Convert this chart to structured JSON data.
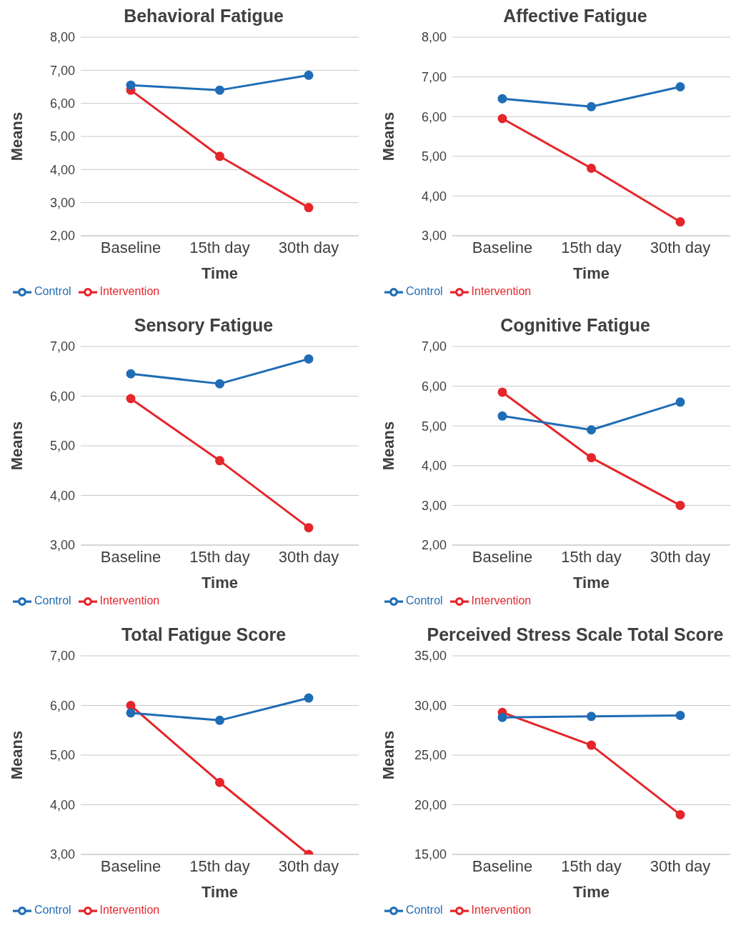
{
  "chart_data": [
    {
      "type": "line",
      "title": "Behavioral Fatigue",
      "xlabel": "Time",
      "ylabel": "Means",
      "categories": [
        "Baseline",
        "15th day",
        "30th day"
      ],
      "series": [
        {
          "name": "Intervention",
          "color": "#e5262b",
          "values": [
            6.4,
            4.4,
            2.85
          ]
        },
        {
          "name": "Control",
          "color": "#1f6db5",
          "values": [
            6.55,
            6.4,
            6.85
          ]
        }
      ],
      "ylim": [
        2,
        8
      ],
      "yticks": [
        {
          "value": 2,
          "label": "2,00"
        },
        {
          "value": 3,
          "label": "3,00"
        },
        {
          "value": 4,
          "label": "4,00"
        },
        {
          "value": 5,
          "label": "5,00"
        },
        {
          "value": 6,
          "label": "6,00"
        },
        {
          "value": 7,
          "label": "7,00"
        },
        {
          "value": 8,
          "label": "8,00"
        }
      ],
      "grid": "y",
      "legend": "bottom left",
      "marker": "circle",
      "line_style": "solid"
    },
    {
      "type": "line",
      "title": "Affective Fatigue",
      "xlabel": "Time",
      "ylabel": "Means",
      "categories": [
        "Baseline",
        "15th day",
        "30th day"
      ],
      "series": [
        {
          "name": "Intervention",
          "color": "#e5262b",
          "values": [
            5.95,
            4.7,
            3.35
          ]
        },
        {
          "name": "Control",
          "color": "#1f6db5",
          "values": [
            6.45,
            6.25,
            6.75
          ]
        }
      ],
      "ylim": [
        3,
        8
      ],
      "yticks": [
        {
          "value": 3,
          "label": "3,00"
        },
        {
          "value": 4,
          "label": "4,00"
        },
        {
          "value": 5,
          "label": "5,00"
        },
        {
          "value": 6,
          "label": "6,00"
        },
        {
          "value": 7,
          "label": "7,00"
        },
        {
          "value": 8,
          "label": "8,00"
        }
      ],
      "grid": "y",
      "legend": "bottom left",
      "marker": "circle",
      "line_style": "solid"
    },
    {
      "type": "line",
      "title": "Sensory Fatigue",
      "xlabel": "Time",
      "ylabel": "Means",
      "categories": [
        "Baseline",
        "15th day",
        "30th day"
      ],
      "series": [
        {
          "name": "Intervention",
          "color": "#e5262b",
          "values": [
            5.95,
            4.7,
            3.35
          ]
        },
        {
          "name": "Control",
          "color": "#1f6db5",
          "values": [
            6.45,
            6.25,
            6.75
          ]
        }
      ],
      "ylim": [
        3,
        7
      ],
      "yticks": [
        {
          "value": 3,
          "label": "3,00"
        },
        {
          "value": 4,
          "label": "4,00"
        },
        {
          "value": 5,
          "label": "5,00"
        },
        {
          "value": 6,
          "label": "6,00"
        },
        {
          "value": 7,
          "label": "7,00"
        }
      ],
      "grid": "y",
      "legend": "bottom left",
      "marker": "circle",
      "line_style": "solid"
    },
    {
      "type": "line",
      "title": "Cognitive Fatigue",
      "xlabel": "Time",
      "ylabel": "Means",
      "categories": [
        "Baseline",
        "15th day",
        "30th day"
      ],
      "series": [
        {
          "name": "Intervention",
          "color": "#e5262b",
          "values": [
            5.85,
            4.2,
            3
          ]
        },
        {
          "name": "Control",
          "color": "#1f6db5",
          "values": [
            5.25,
            4.9,
            5.6
          ]
        }
      ],
      "ylim": [
        2,
        7
      ],
      "yticks": [
        {
          "value": 2,
          "label": "2,00"
        },
        {
          "value": 3,
          "label": "3,00"
        },
        {
          "value": 4,
          "label": "4,00"
        },
        {
          "value": 5,
          "label": "5,00"
        },
        {
          "value": 6,
          "label": "6,00"
        },
        {
          "value": 7,
          "label": "7,00"
        }
      ],
      "grid": "y",
      "legend": "bottom left",
      "marker": "circle",
      "line_style": "solid"
    },
    {
      "type": "line",
      "title": "Total Fatigue Score",
      "xlabel": "Time",
      "ylabel": "Means",
      "categories": [
        "Baseline",
        "15th day",
        "30th day"
      ],
      "series": [
        {
          "name": "Intervention",
          "color": "#e5262b",
          "values": [
            6,
            4.45,
            3
          ]
        },
        {
          "name": "Control",
          "color": "#1f6db5",
          "values": [
            5.85,
            5.7,
            6.15
          ]
        }
      ],
      "ylim": [
        3,
        7
      ],
      "yticks": [
        {
          "value": 3,
          "label": "3,00"
        },
        {
          "value": 4,
          "label": "4,00"
        },
        {
          "value": 5,
          "label": "5,00"
        },
        {
          "value": 6,
          "label": "6,00"
        },
        {
          "value": 7,
          "label": "7,00"
        }
      ],
      "grid": "y",
      "legend": "bottom left",
      "marker": "circle",
      "line_style": "solid"
    },
    {
      "type": "line",
      "title": "Perceived Stress Scale Total Score",
      "xlabel": "Time",
      "ylabel": "Means",
      "categories": [
        "Baseline",
        "15th day",
        "30th day"
      ],
      "series": [
        {
          "name": "Intervention",
          "color": "#e5262b",
          "values": [
            29.3,
            26,
            19
          ]
        },
        {
          "name": "Control",
          "color": "#1f6db5",
          "values": [
            28.8,
            28.9,
            29
          ]
        }
      ],
      "ylim": [
        15,
        35
      ],
      "yticks": [
        {
          "value": 15,
          "label": "15,00"
        },
        {
          "value": 20,
          "label": "20,00"
        },
        {
          "value": 25,
          "label": "25,00"
        },
        {
          "value": 30,
          "label": "30,00"
        },
        {
          "value": 35,
          "label": "35,00"
        }
      ],
      "grid": "y",
      "legend": "bottom left",
      "marker": "circle",
      "line_style": "solid"
    }
  ]
}
